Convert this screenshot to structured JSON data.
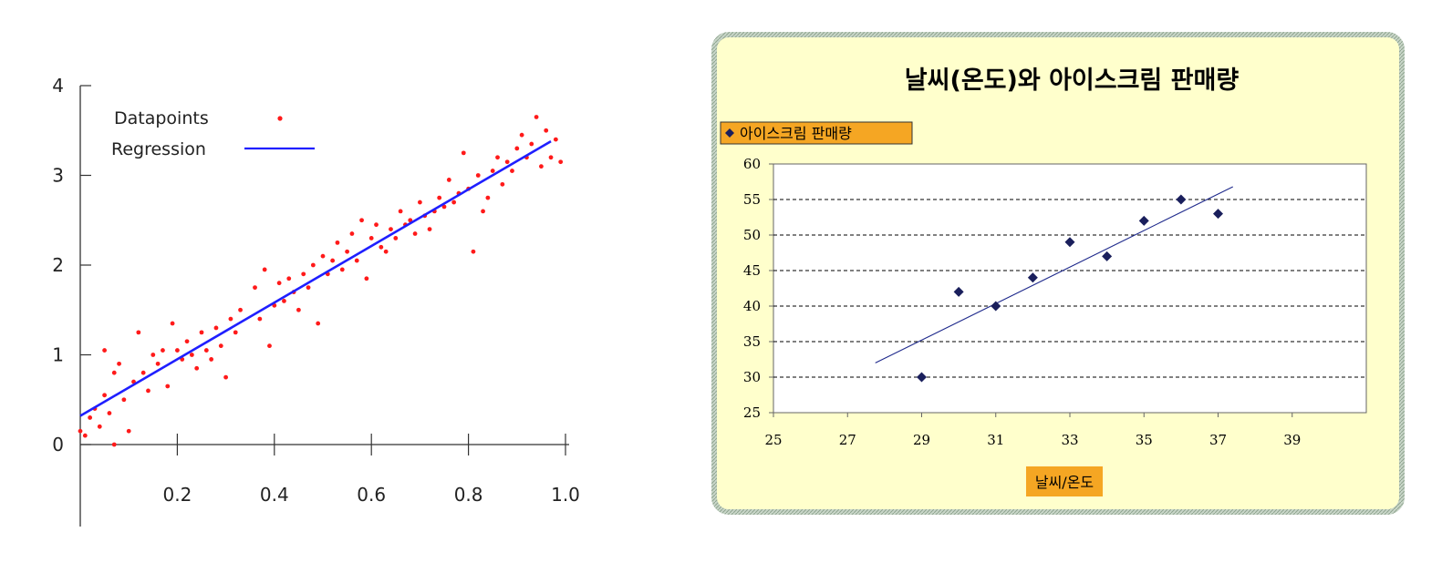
{
  "chart_data": [
    {
      "type": "scatter",
      "title": "",
      "xlabel": "",
      "ylabel": "",
      "xlim": [
        0,
        1.0
      ],
      "ylim": [
        -0.8,
        4
      ],
      "x_ticks": [
        0.2,
        0.4,
        0.6,
        0.8,
        1.0
      ],
      "x_tick_labels": [
        "0.2",
        "0.4",
        "0.6",
        "0.8",
        "1.0"
      ],
      "y_ticks": [
        0,
        1,
        2,
        3,
        4
      ],
      "y_tick_labels": [
        "0",
        "1",
        "2",
        "3",
        "4"
      ],
      "legend": {
        "position": "top-left",
        "entries": [
          "Datapoints",
          "Regression"
        ]
      },
      "colors": {
        "points": "#ff1a1a",
        "line": "#1f1fff"
      },
      "series": [
        {
          "name": "Datapoints",
          "kind": "scatter",
          "x": [
            0.0,
            0.01,
            0.02,
            0.03,
            0.04,
            0.05,
            0.05,
            0.06,
            0.07,
            0.07,
            0.08,
            0.09,
            0.1,
            0.11,
            0.12,
            0.13,
            0.14,
            0.15,
            0.16,
            0.17,
            0.18,
            0.19,
            0.2,
            0.21,
            0.22,
            0.23,
            0.24,
            0.25,
            0.26,
            0.27,
            0.28,
            0.29,
            0.3,
            0.31,
            0.32,
            0.33,
            0.36,
            0.37,
            0.38,
            0.39,
            0.4,
            0.41,
            0.42,
            0.43,
            0.44,
            0.45,
            0.46,
            0.47,
            0.48,
            0.49,
            0.5,
            0.51,
            0.52,
            0.53,
            0.54,
            0.55,
            0.56,
            0.57,
            0.58,
            0.59,
            0.6,
            0.61,
            0.62,
            0.63,
            0.64,
            0.65,
            0.66,
            0.67,
            0.68,
            0.69,
            0.7,
            0.71,
            0.72,
            0.73,
            0.74,
            0.75,
            0.76,
            0.77,
            0.78,
            0.79,
            0.8,
            0.81,
            0.82,
            0.83,
            0.84,
            0.85,
            0.86,
            0.87,
            0.88,
            0.89,
            0.9,
            0.91,
            0.92,
            0.93,
            0.94,
            0.95,
            0.96,
            0.97,
            0.98,
            0.99
          ],
          "y": [
            0.15,
            0.1,
            0.3,
            0.4,
            0.2,
            1.05,
            0.55,
            0.35,
            0.8,
            0.0,
            0.9,
            0.5,
            0.15,
            0.7,
            1.25,
            0.8,
            0.6,
            1.0,
            0.9,
            1.05,
            0.65,
            1.35,
            1.05,
            0.95,
            1.15,
            1.0,
            0.85,
            1.25,
            1.05,
            0.95,
            1.3,
            1.1,
            0.75,
            1.4,
            1.25,
            1.5,
            1.75,
            1.4,
            1.95,
            1.1,
            1.55,
            1.8,
            1.6,
            1.85,
            1.7,
            1.5,
            1.9,
            1.75,
            2.0,
            1.35,
            2.1,
            1.9,
            2.05,
            2.25,
            1.95,
            2.15,
            2.35,
            2.05,
            2.5,
            1.85,
            2.3,
            2.45,
            2.2,
            2.15,
            2.4,
            2.3,
            2.6,
            2.45,
            2.5,
            2.35,
            2.7,
            2.55,
            2.4,
            2.6,
            2.75,
            2.65,
            2.95,
            2.7,
            2.8,
            3.25,
            2.85,
            2.15,
            3.0,
            2.6,
            2.75,
            3.05,
            3.2,
            2.9,
            3.15,
            3.05,
            3.3,
            3.45,
            3.2,
            3.35,
            3.65,
            3.1,
            3.5,
            3.2,
            3.4,
            3.15
          ]
        },
        {
          "name": "Regression",
          "kind": "line",
          "x": [
            0.0,
            0.97
          ],
          "y": [
            0.32,
            3.38
          ]
        }
      ]
    },
    {
      "type": "scatter",
      "title": "날씨(온도)와 아이스크림 판매량",
      "xlabel": "날씨/온도",
      "ylabel": "",
      "xlim": [
        25,
        41
      ],
      "ylim": [
        25,
        60
      ],
      "x_ticks": [
        25,
        27,
        29,
        31,
        33,
        35,
        37,
        39
      ],
      "x_tick_labels": [
        "25",
        "27",
        "29",
        "31",
        "33",
        "35",
        "37",
        "39"
      ],
      "y_ticks": [
        25,
        30,
        35,
        40,
        45,
        50,
        55,
        60
      ],
      "y_tick_labels": [
        "25",
        "30",
        "35",
        "40",
        "45",
        "50",
        "55",
        "60"
      ],
      "grid": "horizontal dashed",
      "legend": {
        "position": "top-left",
        "entries": [
          "아이스크림 판매량"
        ]
      },
      "colors": {
        "background": "#ffffcc",
        "border": "#a8b8a8",
        "points": "#1a1f5c",
        "trend": "#1f2a8c",
        "label_bg": "#f5a623"
      },
      "series": [
        {
          "name": "아이스크림 판매량",
          "kind": "scatter",
          "x": [
            29,
            30,
            31,
            32,
            33,
            34,
            35,
            36,
            37
          ],
          "y": [
            30,
            42,
            40,
            44,
            49,
            47,
            52,
            55,
            53
          ]
        },
        {
          "name": "",
          "kind": "trendline",
          "x": [
            27.75,
            37.4
          ],
          "y": [
            32.0,
            56.8
          ]
        }
      ]
    }
  ]
}
